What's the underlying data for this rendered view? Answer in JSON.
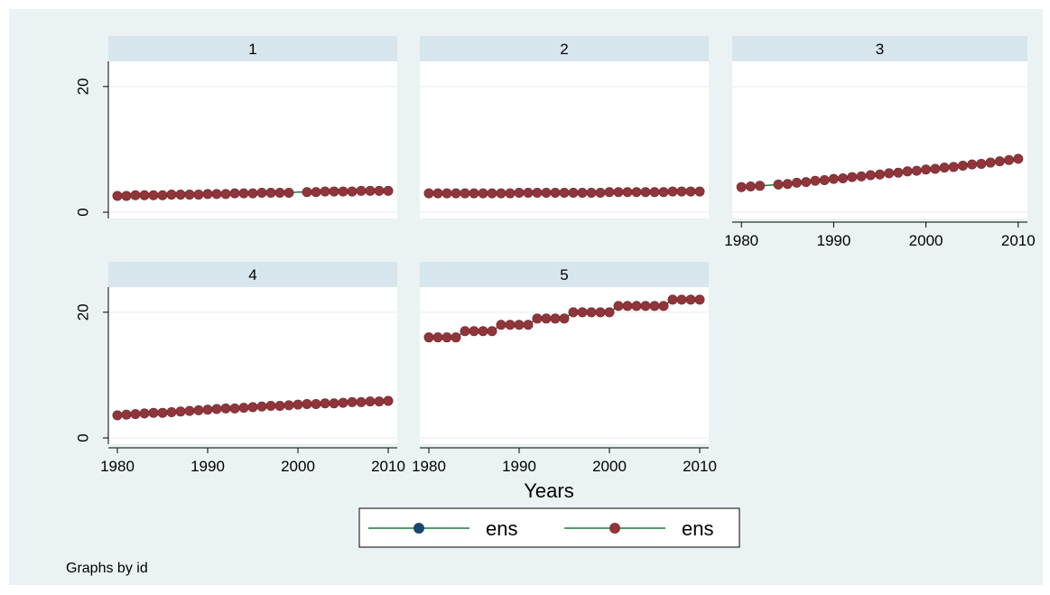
{
  "chart_data": {
    "type": "line",
    "subtitle_note": "Graphs by id",
    "xlabel": "Years",
    "ylabel": "",
    "x_ticks": [
      1980,
      1990,
      2000,
      2010
    ],
    "y_ticks": [
      0,
      20
    ],
    "xlim": [
      1979,
      2011
    ],
    "ylim": [
      -1,
      24
    ],
    "grid": true,
    "legend_position": "bottom",
    "colors": {
      "plot_region": "#eaf2f3",
      "panel_bg": "#ffffff",
      "strip": "#d7e6ec",
      "line": "#1a7a3c",
      "marker_series1": "#1a476f",
      "marker_series2": "#90353b"
    },
    "legend": [
      {
        "label": "ens",
        "marker_color": "#1a476f",
        "line_color": "#1a7a3c"
      },
      {
        "label": "ens",
        "marker_color": "#90353b",
        "line_color": "#1a7a3c"
      }
    ],
    "panels": [
      {
        "title": "1",
        "x": [
          1980,
          1981,
          1982,
          1983,
          1984,
          1985,
          1986,
          1987,
          1988,
          1989,
          1990,
          1991,
          1992,
          1993,
          1994,
          1995,
          1996,
          1997,
          1998,
          1999,
          2000,
          2001,
          2002,
          2003,
          2004,
          2005,
          2006,
          2007,
          2008,
          2009,
          2010
        ],
        "y": [
          2.6,
          2.6,
          2.7,
          2.7,
          2.7,
          2.7,
          2.8,
          2.8,
          2.8,
          2.8,
          2.9,
          2.9,
          2.9,
          3.0,
          3.0,
          3.0,
          3.1,
          3.1,
          3.1,
          3.1,
          3.2,
          3.2,
          3.2,
          3.3,
          3.3,
          3.3,
          3.3,
          3.4,
          3.4,
          3.4,
          3.4
        ],
        "missing_markers": [
          2000
        ]
      },
      {
        "title": "2",
        "x": [
          1980,
          1981,
          1982,
          1983,
          1984,
          1985,
          1986,
          1987,
          1988,
          1989,
          1990,
          1991,
          1992,
          1993,
          1994,
          1995,
          1996,
          1997,
          1998,
          1999,
          2000,
          2001,
          2002,
          2003,
          2004,
          2005,
          2006,
          2007,
          2008,
          2009,
          2010
        ],
        "y": [
          3.0,
          3.0,
          3.0,
          3.0,
          3.0,
          3.0,
          3.0,
          3.0,
          3.0,
          3.0,
          3.1,
          3.1,
          3.1,
          3.1,
          3.1,
          3.1,
          3.1,
          3.1,
          3.1,
          3.1,
          3.2,
          3.2,
          3.2,
          3.2,
          3.2,
          3.2,
          3.2,
          3.3,
          3.3,
          3.3,
          3.3
        ],
        "missing_markers": []
      },
      {
        "title": "3",
        "x": [
          1980,
          1981,
          1982,
          1983,
          1984,
          1985,
          1986,
          1987,
          1988,
          1989,
          1990,
          1991,
          1992,
          1993,
          1994,
          1995,
          1996,
          1997,
          1998,
          1999,
          2000,
          2001,
          2002,
          2003,
          2004,
          2005,
          2006,
          2007,
          2008,
          2009,
          2010
        ],
        "y": [
          4.0,
          4.1,
          4.2,
          4.3,
          4.4,
          4.5,
          4.7,
          4.8,
          5.0,
          5.1,
          5.3,
          5.4,
          5.6,
          5.7,
          5.9,
          6.0,
          6.2,
          6.3,
          6.5,
          6.6,
          6.8,
          6.9,
          7.1,
          7.2,
          7.4,
          7.6,
          7.7,
          7.9,
          8.1,
          8.3,
          8.5
        ],
        "missing_markers": [
          1983
        ]
      },
      {
        "title": "4",
        "x": [
          1980,
          1981,
          1982,
          1983,
          1984,
          1985,
          1986,
          1987,
          1988,
          1989,
          1990,
          1991,
          1992,
          1993,
          1994,
          1995,
          1996,
          1997,
          1998,
          1999,
          2000,
          2001,
          2002,
          2003,
          2004,
          2005,
          2006,
          2007,
          2008,
          2009,
          2010
        ],
        "y": [
          3.6,
          3.7,
          3.8,
          3.9,
          4.0,
          4.0,
          4.1,
          4.2,
          4.3,
          4.4,
          4.5,
          4.6,
          4.7,
          4.7,
          4.8,
          4.9,
          5.0,
          5.1,
          5.1,
          5.2,
          5.3,
          5.4,
          5.4,
          5.5,
          5.5,
          5.6,
          5.7,
          5.7,
          5.8,
          5.8,
          5.9
        ],
        "missing_markers": []
      },
      {
        "title": "5",
        "x": [
          1980,
          1981,
          1982,
          1983,
          1984,
          1985,
          1986,
          1987,
          1988,
          1989,
          1990,
          1991,
          1992,
          1993,
          1994,
          1995,
          1996,
          1997,
          1998,
          1999,
          2000,
          2001,
          2002,
          2003,
          2004,
          2005,
          2006,
          2007,
          2008,
          2009,
          2010
        ],
        "y": [
          16,
          16,
          16,
          16,
          17,
          17,
          17,
          17,
          18,
          18,
          18,
          18,
          19,
          19,
          19,
          19,
          20,
          20,
          20,
          20,
          20,
          21,
          21,
          21,
          21,
          21,
          21,
          22,
          22,
          22,
          22
        ],
        "missing_markers": []
      }
    ]
  }
}
